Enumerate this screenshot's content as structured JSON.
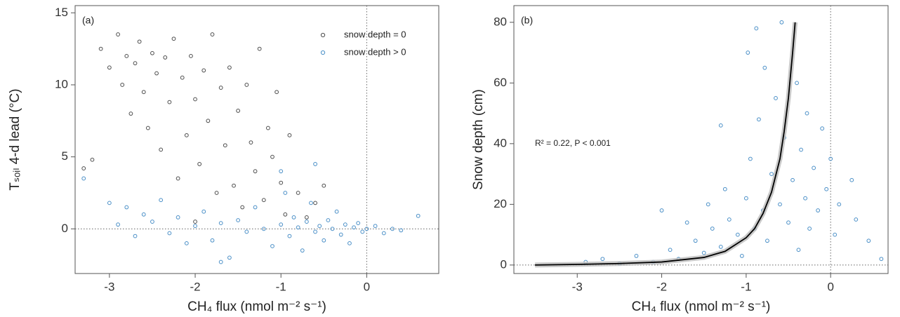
{
  "chart_data": [
    {
      "type": "scatter",
      "panel_label": "(a)",
      "x_label": "CH₄ flux (nmol m⁻² s⁻¹)",
      "y_label": "Tₛₒᵢₗ 4-d lead (°C)",
      "xlim": [
        -3.4,
        0.84
      ],
      "ylim": [
        -3.1,
        15.5
      ],
      "xticks": [
        -3,
        -2,
        -1,
        0
      ],
      "yticks": [
        0,
        5,
        10,
        15
      ],
      "reference_lines": {
        "x": 0,
        "y": 0
      },
      "legend": "top-right",
      "series": [
        {
          "name": "snow depth = 0",
          "color": "#4d4d4d",
          "x": [
            -3.1,
            -3.0,
            -2.9,
            -2.85,
            -2.8,
            -2.75,
            -2.7,
            -2.65,
            -2.6,
            -2.55,
            -2.5,
            -2.45,
            -2.4,
            -2.35,
            -2.3,
            -2.25,
            -2.2,
            -2.15,
            -2.1,
            -2.05,
            -2.0,
            -1.95,
            -1.9,
            -1.85,
            -1.8,
            -1.75,
            -1.7,
            -1.65,
            -1.6,
            -1.55,
            -1.5,
            -1.45,
            -1.4,
            -1.35,
            -1.3,
            -1.25,
            -1.2,
            -1.15,
            -1.1,
            -1.05,
            -1.0,
            -0.95,
            -0.9,
            -0.8,
            -0.7,
            -0.6,
            -0.5,
            -3.3,
            -3.2,
            -2.0
          ],
          "values": [
            12.5,
            11.2,
            13.5,
            10.0,
            12.0,
            8.0,
            11.5,
            13.0,
            9.5,
            7.0,
            12.2,
            10.8,
            5.5,
            11.9,
            8.8,
            13.2,
            3.5,
            10.5,
            6.5,
            12.0,
            9.0,
            4.5,
            11.0,
            7.5,
            13.5,
            2.5,
            9.8,
            5.8,
            11.2,
            3.0,
            8.2,
            1.5,
            10.0,
            6.0,
            4.0,
            12.5,
            2.0,
            7.0,
            5.0,
            9.5,
            3.2,
            1.0,
            6.5,
            2.5,
            0.8,
            1.8,
            3.0,
            4.2,
            4.8,
            0.5
          ]
        },
        {
          "name": "snow depth > 0",
          "color": "#4a8fc7",
          "x": [
            -3.0,
            -2.9,
            -2.8,
            -2.7,
            -2.6,
            -2.5,
            -2.4,
            -2.3,
            -2.2,
            -2.1,
            -2.0,
            -1.9,
            -1.8,
            -1.7,
            -1.6,
            -1.5,
            -1.4,
            -1.3,
            -1.2,
            -1.1,
            -1.0,
            -0.95,
            -0.9,
            -0.85,
            -0.8,
            -0.75,
            -0.7,
            -0.65,
            -0.6,
            -0.55,
            -0.5,
            -0.45,
            -0.4,
            -0.35,
            -0.3,
            -0.25,
            -0.2,
            -0.15,
            -0.1,
            -0.05,
            0.0,
            0.1,
            0.2,
            0.3,
            0.4,
            0.6,
            -0.6,
            -1.0,
            -3.3,
            -1.7
          ],
          "values": [
            1.8,
            0.3,
            1.5,
            -0.5,
            1.0,
            0.5,
            2.0,
            -0.3,
            0.8,
            -1.0,
            0.2,
            1.2,
            -0.8,
            0.4,
            -2.0,
            0.6,
            -0.2,
            1.5,
            0.0,
            -1.2,
            0.3,
            2.5,
            -0.5,
            0.8,
            0.1,
            -1.5,
            0.5,
            1.8,
            -0.2,
            0.2,
            -0.8,
            0.6,
            0.0,
            1.2,
            -0.4,
            0.3,
            -1.0,
            0.1,
            0.4,
            -0.2,
            0.0,
            0.2,
            -0.3,
            0.0,
            -0.1,
            0.9,
            4.5,
            4.0,
            3.5,
            -2.3
          ]
        }
      ]
    },
    {
      "type": "scatter",
      "panel_label": "(b)",
      "x_label": "CH₄ flux (nmol m⁻² s⁻¹)",
      "y_label": "Snow depth (cm)",
      "annotation": "R² = 0.22, P < 0.001",
      "xlim": [
        -3.75,
        0.68
      ],
      "ylim": [
        -2.8,
        85.5
      ],
      "xticks": [
        -3,
        -2,
        -1,
        0
      ],
      "yticks": [
        0,
        20,
        40,
        60,
        80
      ],
      "reference_lines": {
        "x": 0,
        "y": 0
      },
      "series": [
        {
          "color": "#4a8fc7",
          "x": [
            -2.9,
            -2.7,
            -2.5,
            -2.3,
            -2.1,
            -2.0,
            -1.9,
            -1.8,
            -1.7,
            -1.6,
            -1.5,
            -1.45,
            -1.4,
            -1.3,
            -1.25,
            -1.2,
            -1.1,
            -1.05,
            -1.0,
            -0.98,
            -0.95,
            -0.9,
            -0.88,
            -0.85,
            -0.8,
            -0.78,
            -0.75,
            -0.7,
            -0.65,
            -0.6,
            -0.58,
            -0.55,
            -0.5,
            -0.45,
            -0.4,
            -0.38,
            -0.35,
            -0.3,
            -0.28,
            -0.25,
            -0.2,
            -0.15,
            -0.1,
            -0.05,
            0.0,
            0.05,
            0.1,
            0.25,
            0.3,
            0.45,
            0.6,
            -1.3
          ],
          "values": [
            1,
            2,
            0.5,
            3,
            1,
            18,
            5,
            2,
            14,
            8,
            4,
            20,
            12,
            6,
            25,
            15,
            10,
            3,
            22,
            70,
            35,
            12,
            78,
            48,
            18,
            65,
            8,
            30,
            55,
            20,
            80,
            42,
            14,
            28,
            60,
            5,
            38,
            22,
            50,
            12,
            32,
            18,
            45,
            25,
            35,
            10,
            20,
            28,
            15,
            8,
            2,
            46
          ]
        }
      ],
      "fit": {
        "color": "#000000",
        "x": [
          -3.5,
          -3,
          -2.5,
          -2,
          -1.5,
          -1.25,
          -1,
          -0.9,
          -0.8,
          -0.7,
          -0.6,
          -0.55,
          -0.5,
          -0.45,
          -0.42
        ],
        "values": [
          0,
          0.2,
          0.5,
          1,
          2.5,
          4.5,
          9,
          12,
          17,
          24,
          35,
          44,
          55,
          70,
          80
        ]
      }
    }
  ]
}
